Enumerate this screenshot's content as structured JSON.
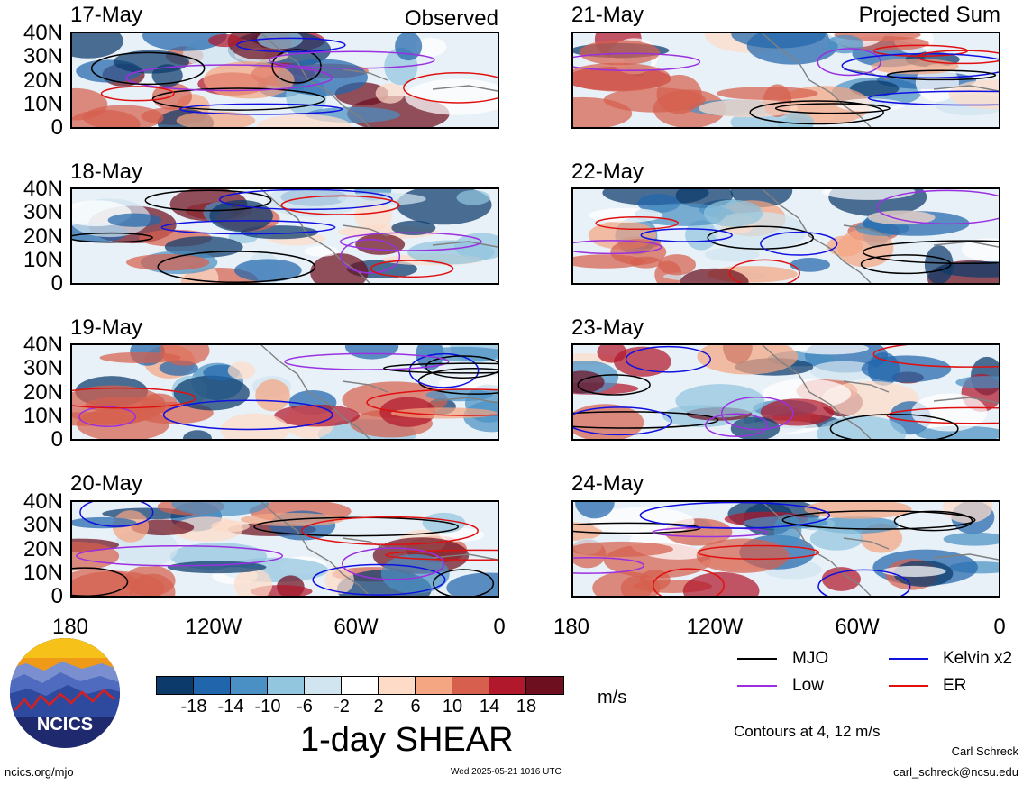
{
  "headers": {
    "left": "Observed",
    "right": "Projected Sum"
  },
  "panels_left": [
    {
      "date": "17-May"
    },
    {
      "date": "18-May"
    },
    {
      "date": "19-May"
    },
    {
      "date": "20-May"
    }
  ],
  "panels_right": [
    {
      "date": "21-May"
    },
    {
      "date": "22-May"
    },
    {
      "date": "23-May"
    },
    {
      "date": "24-May"
    }
  ],
  "lat_labels": [
    "40N",
    "30N",
    "20N",
    "10N",
    "0"
  ],
  "lon_labels": [
    "180",
    "120W",
    "60W",
    "0"
  ],
  "colorbar": {
    "title": "1-day SHEAR",
    "unit": "m/s",
    "tick_labels": [
      "-18",
      "-14",
      "-10",
      "-6",
      "-2",
      "2",
      "6",
      "10",
      "14",
      "18"
    ],
    "colors": [
      "#0b3a6b",
      "#2166ac",
      "#4a90c4",
      "#92c5de",
      "#d1e5f0",
      "#ffffff",
      "#fddbc7",
      "#f4a582",
      "#d6604d",
      "#b2182b",
      "#6d0f1f"
    ]
  },
  "legend": {
    "items": [
      {
        "label": "MJO",
        "color": "#000000"
      },
      {
        "label": "Kelvin x2",
        "color": "#1010e0"
      },
      {
        "label": "Low",
        "color": "#9a30e0"
      },
      {
        "label": "ER",
        "color": "#e01010"
      }
    ],
    "contours_note": "Contours at 4, 12 m/s"
  },
  "logo": {
    "text": "NCICS"
  },
  "footer": {
    "left": "ncics.org/mjo",
    "center": "Wed 2025-05-21 1016 UTC",
    "author": "Carl Schreck",
    "email": "carl_schreck@ncsu.edu"
  }
}
